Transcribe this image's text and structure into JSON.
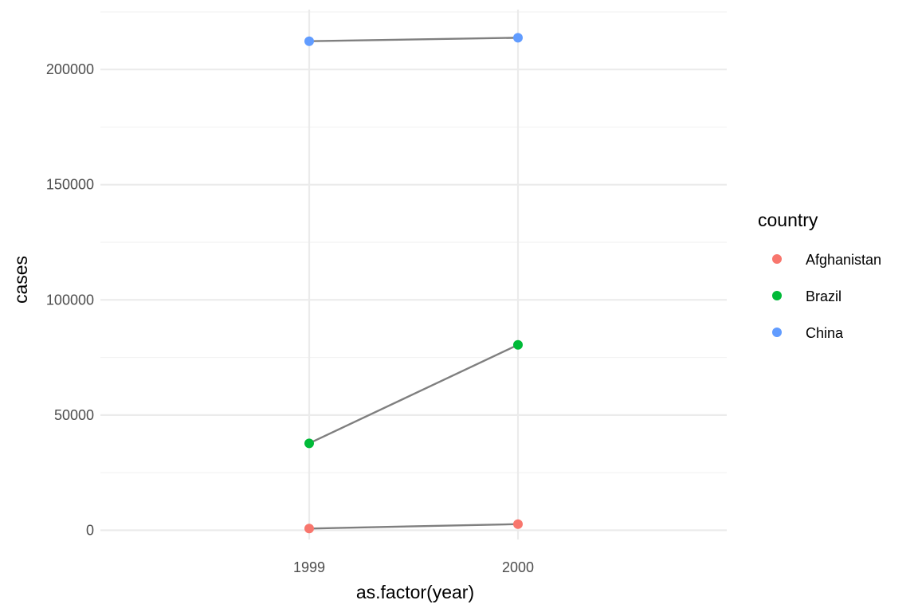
{
  "chart_data": {
    "type": "line",
    "title": "",
    "xlabel": "as.factor(year)",
    "ylabel": "cases",
    "categories": [
      "1999",
      "2000"
    ],
    "ylim": [
      -4000,
      226000
    ],
    "y_ticks": [
      0,
      50000,
      100000,
      150000,
      200000
    ],
    "y_tick_labels": [
      "0",
      "50000",
      "100000",
      "150000",
      "200000"
    ],
    "grid": true,
    "line_color": "#7f7f7f",
    "legend": {
      "title": "country",
      "position": "right"
    },
    "series": [
      {
        "name": "Afghanistan",
        "color": "#F8766D",
        "values": [
          745,
          2666
        ]
      },
      {
        "name": "Brazil",
        "color": "#00BA38",
        "values": [
          37737,
          80488
        ]
      },
      {
        "name": "China",
        "color": "#619CFF",
        "values": [
          212258,
          213766
        ]
      }
    ]
  }
}
